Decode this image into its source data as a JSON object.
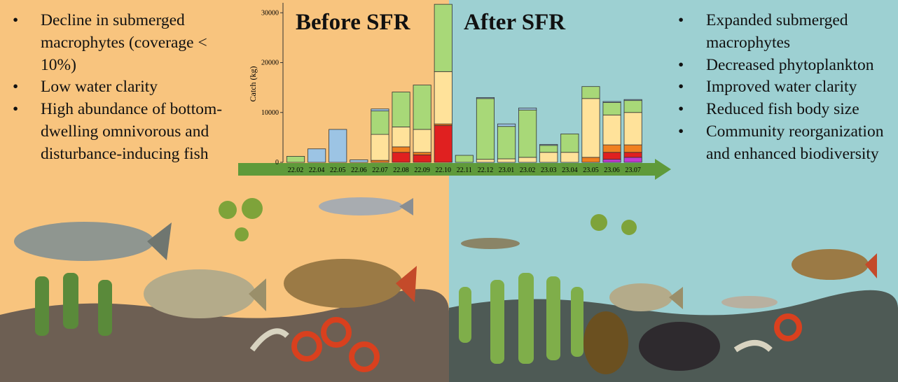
{
  "before": {
    "title": "Before SFR",
    "bullets": [
      "Decline in submerged macrophytes (coverage < 10%)",
      "Low water clarity",
      "High abundance of bottom-dwelling omnivorous and disturbance-inducing fish"
    ]
  },
  "after": {
    "title": "After SFR",
    "bullets": [
      "Expanded submerged macrophytes",
      "Decreased phytoplankton",
      "Improved water clarity",
      "Reduced fish body size",
      "Community reorganization and enhanced biodiversity"
    ]
  },
  "chart_data": {
    "type": "bar",
    "stacked": true,
    "y_label": "Catch (kg)",
    "categories": [
      "22.02",
      "22.04",
      "22.05",
      "22.06",
      "22.07",
      "22.08",
      "22.09",
      "22.10",
      "22.11",
      "22.12",
      "23.01",
      "23.02",
      "23.03",
      "23.04",
      "23.05",
      "23.06",
      "23.07"
    ],
    "series": [
      {
        "color": "#c23ad0",
        "values": [
          0,
          0,
          0,
          0,
          0,
          0,
          0,
          0,
          0,
          0,
          0,
          0,
          0,
          0,
          0,
          600,
          1000
        ]
      },
      {
        "color": "#e02020",
        "values": [
          0,
          0,
          0,
          0,
          0,
          2000,
          1500,
          7400,
          0,
          0,
          0,
          0,
          0,
          0,
          0,
          1400,
          1000
        ]
      },
      {
        "color": "#f08020",
        "values": [
          0,
          0,
          0,
          0,
          400,
          1100,
          500,
          300,
          0,
          0,
          0,
          0,
          0,
          0,
          1000,
          1500,
          1500
        ]
      },
      {
        "color": "#ffe29a",
        "values": [
          0,
          0,
          0,
          0,
          5200,
          4000,
          4600,
          10500,
          0,
          600,
          700,
          1000,
          2000,
          2000,
          11800,
          6000,
          6500
        ]
      },
      {
        "color": "#a8d878",
        "values": [
          1200,
          0,
          0,
          0,
          4700,
          7000,
          8900,
          13500,
          1400,
          12200,
          6500,
          9500,
          1400,
          3700,
          2400,
          2500,
          2400
        ]
      },
      {
        "color": "#9cc4e4",
        "values": [
          0,
          2700,
          6600,
          500,
          400,
          0,
          0,
          0,
          0,
          200,
          500,
          400,
          200,
          0,
          0,
          200,
          200
        ]
      }
    ],
    "ylim": [
      0,
      32000
    ],
    "yticks": [
      0,
      10000,
      20000,
      30000
    ]
  }
}
